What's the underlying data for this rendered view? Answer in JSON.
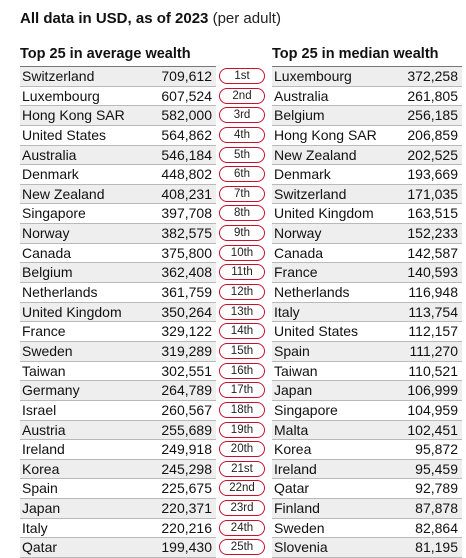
{
  "header": {
    "title_bold": "All data in USD, as of 2023",
    "title_note": "(per adult)"
  },
  "average": {
    "heading": "Top 25 in average wealth",
    "rows": [
      {
        "country": "Switzerland",
        "value": "709,612"
      },
      {
        "country": "Luxembourg",
        "value": "607,524"
      },
      {
        "country": "Hong Kong SAR",
        "value": "582,000"
      },
      {
        "country": "United States",
        "value": "564,862"
      },
      {
        "country": "Australia",
        "value": "546,184"
      },
      {
        "country": "Denmark",
        "value": "448,802"
      },
      {
        "country": "New Zealand",
        "value": "408,231"
      },
      {
        "country": "Singapore",
        "value": "397,708"
      },
      {
        "country": "Norway",
        "value": "382,575"
      },
      {
        "country": "Canada",
        "value": "375,800"
      },
      {
        "country": "Belgium",
        "value": "362,408"
      },
      {
        "country": "Netherlands",
        "value": "361,759"
      },
      {
        "country": "United Kingdom",
        "value": "350,264"
      },
      {
        "country": "France",
        "value": "329,122"
      },
      {
        "country": "Sweden",
        "value": "319,289"
      },
      {
        "country": "Taiwan",
        "value": "302,551"
      },
      {
        "country": "Germany",
        "value": "264,789"
      },
      {
        "country": "Israel",
        "value": "260,567"
      },
      {
        "country": "Austria",
        "value": "255,689"
      },
      {
        "country": "Ireland",
        "value": "249,918"
      },
      {
        "country": "Korea",
        "value": "245,298"
      },
      {
        "country": "Spain",
        "value": "225,675"
      },
      {
        "country": "Japan",
        "value": "220,371"
      },
      {
        "country": "Italy",
        "value": "220,216"
      },
      {
        "country": "Qatar",
        "value": "199,430"
      }
    ]
  },
  "ranks": [
    "1st",
    "2nd",
    "3rd",
    "4th",
    "5th",
    "6th",
    "7th",
    "8th",
    "9th",
    "10th",
    "11th",
    "12th",
    "13th",
    "14th",
    "15th",
    "16th",
    "17th",
    "18th",
    "19th",
    "20th",
    "21st",
    "22nd",
    "23rd",
    "24th",
    "25th"
  ],
  "median": {
    "heading": "Top 25 in median wealth",
    "rows": [
      {
        "country": "Luxembourg",
        "value": "372,258"
      },
      {
        "country": "Australia",
        "value": "261,805"
      },
      {
        "country": "Belgium",
        "value": "256,185"
      },
      {
        "country": "Hong Kong SAR",
        "value": "206,859"
      },
      {
        "country": "New Zealand",
        "value": "202,525"
      },
      {
        "country": "Denmark",
        "value": "193,669"
      },
      {
        "country": "Switzerland",
        "value": "171,035"
      },
      {
        "country": "United Kingdom",
        "value": "163,515"
      },
      {
        "country": "Norway",
        "value": "152,233"
      },
      {
        "country": "Canada",
        "value": "142,587"
      },
      {
        "country": "France",
        "value": "140,593"
      },
      {
        "country": "Netherlands",
        "value": "116,948"
      },
      {
        "country": "Italy",
        "value": "113,754"
      },
      {
        "country": "United States",
        "value": "112,157"
      },
      {
        "country": "Spain",
        "value": "111,270"
      },
      {
        "country": "Taiwan",
        "value": "110,521"
      },
      {
        "country": "Japan",
        "value": "106,999"
      },
      {
        "country": "Singapore",
        "value": "104,959"
      },
      {
        "country": "Malta",
        "value": "102,451"
      },
      {
        "country": "Korea",
        "value": "95,872"
      },
      {
        "country": "Ireland",
        "value": "95,459"
      },
      {
        "country": "Qatar",
        "value": "92,789"
      },
      {
        "country": "Finland",
        "value": "87,878"
      },
      {
        "country": "Sweden",
        "value": "82,864"
      },
      {
        "country": "Slovenia",
        "value": "81,195"
      }
    ]
  },
  "colors": {
    "pill_border": "#c8102e",
    "row_shade": "#eeeeee"
  }
}
